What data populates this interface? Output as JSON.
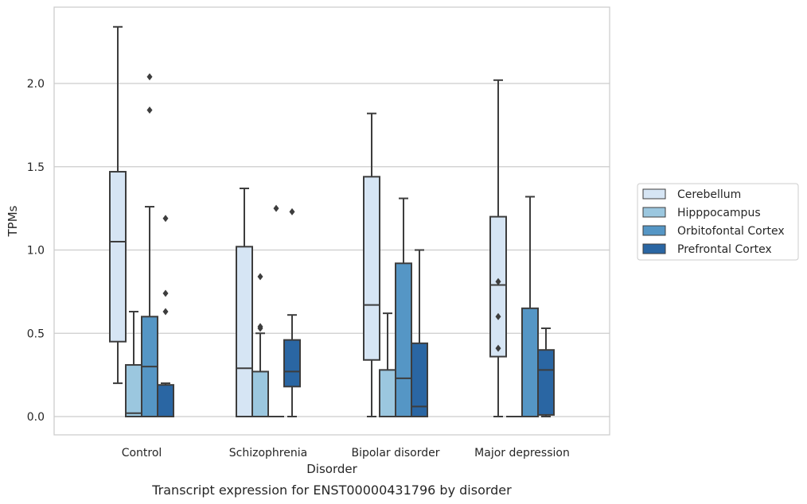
{
  "chart_data": {
    "type": "box",
    "title": "",
    "caption": "Transcript expression for ENST00000431796 by disorder",
    "xlabel": "Disorder",
    "ylabel": "TPMs",
    "ylim": [
      -0.115,
      2.455
    ],
    "yticks": [
      "0.0",
      "0.5",
      "1.0",
      "1.5",
      "2.0"
    ],
    "ytick_values": [
      0.0,
      0.5,
      1.0,
      1.5,
      2.0
    ],
    "grid": "horizontal",
    "legend_placement": "right, outside plot",
    "categories": [
      "Control",
      "Schizophrenia",
      "Bipolar disorder",
      "Major depression"
    ],
    "series": [
      {
        "name": "Cerebellum",
        "color": "#d6e5f4",
        "boxes": [
          {
            "q1": 0.45,
            "median": 1.05,
            "q3": 1.47,
            "whislo": 0.2,
            "whishi": 2.34,
            "fliers": []
          },
          {
            "q1": 0.0,
            "median": 0.29,
            "q3": 1.02,
            "whislo": 0.0,
            "whishi": 1.37,
            "fliers": []
          },
          {
            "q1": 0.34,
            "median": 0.67,
            "q3": 1.44,
            "whislo": 0.0,
            "whishi": 1.82,
            "fliers": []
          },
          {
            "q1": 0.36,
            "median": 0.79,
            "q3": 1.2,
            "whislo": 0.0,
            "whishi": 2.02,
            "fliers": [
              0.41,
              0.6,
              0.81
            ]
          }
        ]
      },
      {
        "name": "Hipppocampus",
        "color": "#9bc7df",
        "boxes": [
          {
            "q1": 0.0,
            "median": 0.02,
            "q3": 0.31,
            "whislo": 0.0,
            "whishi": 0.63,
            "fliers": []
          },
          {
            "q1": 0.0,
            "median": 0.0,
            "q3": 0.27,
            "whislo": 0.0,
            "whishi": 0.5,
            "fliers": [
              0.53,
              0.54,
              0.84
            ]
          },
          {
            "q1": 0.0,
            "median": 0.0,
            "q3": 0.28,
            "whislo": 0.0,
            "whishi": 0.62,
            "fliers": []
          },
          {
            "q1": 0.0,
            "median": 0.0,
            "q3": 0.0,
            "whislo": 0.0,
            "whishi": 0.0,
            "fliers": []
          }
        ]
      },
      {
        "name": "Orbitofontal Cortex",
        "color": "#5596c5",
        "boxes": [
          {
            "q1": 0.0,
            "median": 0.3,
            "q3": 0.6,
            "whislo": 0.0,
            "whishi": 1.26,
            "fliers": [
              1.84,
              2.04
            ]
          },
          {
            "q1": 0.0,
            "median": 0.0,
            "q3": 0.0,
            "whislo": 0.0,
            "whishi": 0.0,
            "fliers": [
              1.25
            ]
          },
          {
            "q1": 0.0,
            "median": 0.23,
            "q3": 0.92,
            "whislo": 0.0,
            "whishi": 1.31,
            "fliers": []
          },
          {
            "q1": 0.0,
            "median": 0.0,
            "q3": 0.65,
            "whislo": 0.0,
            "whishi": 1.32,
            "fliers": []
          }
        ]
      },
      {
        "name": "Prefrontal Cortex",
        "color": "#2a66a3",
        "boxes": [
          {
            "q1": 0.0,
            "median": 0.0,
            "q3": 0.19,
            "whislo": 0.0,
            "whishi": 0.2,
            "fliers": [
              0.63,
              0.74,
              1.19
            ]
          },
          {
            "q1": 0.18,
            "median": 0.27,
            "q3": 0.46,
            "whislo": 0.0,
            "whishi": 0.61,
            "fliers": [
              1.23
            ]
          },
          {
            "q1": 0.0,
            "median": 0.06,
            "q3": 0.44,
            "whislo": 0.0,
            "whishi": 1.0,
            "fliers": []
          },
          {
            "q1": 0.01,
            "median": 0.28,
            "q3": 0.4,
            "whislo": 0.0,
            "whishi": 0.53,
            "fliers": []
          }
        ]
      }
    ]
  }
}
